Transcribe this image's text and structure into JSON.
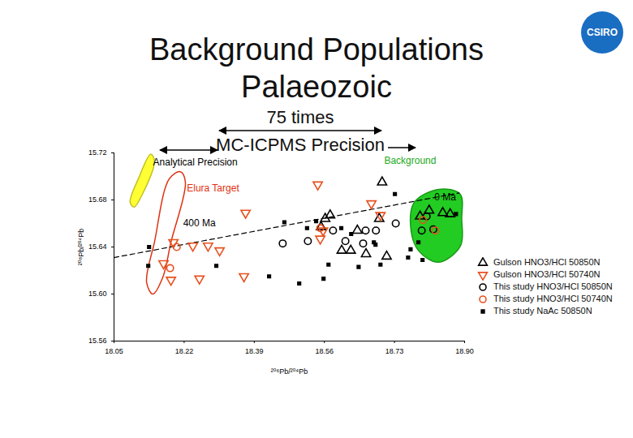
{
  "chart_data": {
    "type": "scatter",
    "title": "Background Populations\nPalaeozoic",
    "subtitle": "75 times\nMC-ICPMS Precision",
    "logo": "CSIRO",
    "x_label": "²⁰⁶Pb/²⁰⁴Pb",
    "y_label": "²⁰⁸Pb/²⁰⁴Pb",
    "xlim": [
      18.05,
      18.9
    ],
    "ylim": [
      15.56,
      15.72
    ],
    "xticks": [
      18.05,
      18.22,
      18.39,
      18.56,
      18.73,
      {
        "value": 18.9,
        "label": "18.90"
      }
    ],
    "yticks": [
      15.56,
      {
        "value": 15.6,
        "label": "15.60"
      },
      15.64,
      15.68,
      15.72
    ],
    "grid": false,
    "legend": "bottom-right",
    "series": [
      {
        "name": "Gulson HNO3/HCl 50850N",
        "color": "#000000",
        "marker": "triangle",
        "x": [
          18.574,
          18.7,
          18.562,
          18.552,
          18.693,
          18.64,
          18.602,
          18.624,
          18.661,
          18.711,
          18.792,
          18.847,
          18.865,
          18.814
        ],
        "values": [
          15.667,
          15.695,
          15.664,
          15.657,
          15.664,
          15.654,
          15.637,
          15.637,
          15.634,
          15.632,
          15.666,
          15.669,
          15.668,
          15.671
        ]
      },
      {
        "name": "Gulson HNO3/HCl 50740N",
        "color": "#e8501e",
        "marker": "triangle-down",
        "x": [
          18.194,
          18.241,
          18.278,
          18.306,
          18.17,
          18.188,
          18.257,
          18.365,
          18.369,
          18.544,
          18.674,
          18.55,
          18.696,
          18.557
        ],
        "values": [
          15.644,
          15.641,
          15.641,
          15.637,
          15.626,
          15.612,
          15.613,
          15.615,
          15.669,
          15.693,
          15.677,
          15.647,
          15.667,
          15.654
        ]
      },
      {
        "name": "This study HNO3/HCl 50850N",
        "color": "#000000",
        "marker": "circle",
        "x": [
          18.459,
          18.52,
          18.581,
          18.611,
          18.654,
          18.733,
          18.685,
          18.796,
          18.824,
          18.808,
          18.66
        ],
        "values": [
          15.643,
          15.645,
          15.654,
          15.645,
          15.643,
          15.66,
          15.654,
          15.654,
          15.655,
          15.666,
          15.654
        ]
      },
      {
        "name": "This study HNO3/HCl 50740N",
        "color": "#e8501e",
        "marker": "circle",
        "x": [
          18.202,
          18.186,
          18.55,
          18.799,
          18.829
        ],
        "values": [
          15.64,
          15.622,
          15.656,
          15.663,
          15.654
        ]
      },
      {
        "name": "This study NaAc 50850N",
        "color": "#000000",
        "marker": "square",
        "x": [
          18.135,
          18.133,
          18.298,
          18.426,
          18.499,
          18.558,
          18.57,
          18.643,
          18.696,
          18.763,
          18.798,
          18.731,
          18.879,
          18.788,
          18.684,
          18.769,
          18.518,
          18.54,
          18.601,
          18.68,
          18.625,
          18.463
        ],
        "values": [
          15.64,
          15.624,
          15.624,
          15.615,
          15.609,
          15.613,
          15.625,
          15.623,
          15.625,
          15.631,
          15.629,
          15.685,
          15.668,
          15.644,
          15.642,
          15.638,
          15.656,
          15.662,
          15.656,
          15.644,
          15.651,
          15.661
        ]
      }
    ],
    "lines": [
      {
        "x": [
          18.05,
          18.887
        ],
        "values": [
          15.631,
          15.686
        ],
        "color": "#000000",
        "line_style": "dashed"
      }
    ],
    "regions": [
      {
        "type": "area",
        "color": "#22cc22",
        "x": [
          18.778,
          18.837,
          18.889,
          18.893,
          18.89,
          18.837,
          18.788,
          18.769
        ],
        "values": [
          15.678,
          15.689,
          15.685,
          15.664,
          15.641,
          15.627,
          15.637,
          15.658
        ]
      },
      {
        "type": "line",
        "color": "#e03010",
        "x": [
          18.211,
          18.223,
          18.188,
          18.168,
          18.144,
          18.129,
          18.148,
          18.184
        ],
        "values": [
          15.704,
          15.695,
          15.644,
          15.614,
          15.6,
          15.61,
          15.644,
          15.698
        ]
      },
      {
        "type": "area",
        "color": "#ffff33",
        "x": [
          18.139,
          18.148,
          18.119,
          18.099,
          18.089,
          18.109
        ],
        "values": [
          15.719,
          15.713,
          15.685,
          15.674,
          15.678,
          15.698
        ]
      }
    ],
    "annotations": [
      {
        "text": "Analytical Precision",
        "x": 18.247,
        "y": 15.712,
        "color": "#000000"
      },
      {
        "text": "Background",
        "x": 18.768,
        "y": 15.713,
        "color": "#22aa22"
      },
      {
        "text": "Elura Target",
        "x": 18.29,
        "y": 15.69,
        "color": "#e03010"
      },
      {
        "text": "0 Ma",
        "x": 18.853,
        "y": 15.682,
        "color": "#000000"
      },
      {
        "text": "400 Ma",
        "x": 18.257,
        "y": 15.66,
        "color": "#000000"
      }
    ]
  }
}
